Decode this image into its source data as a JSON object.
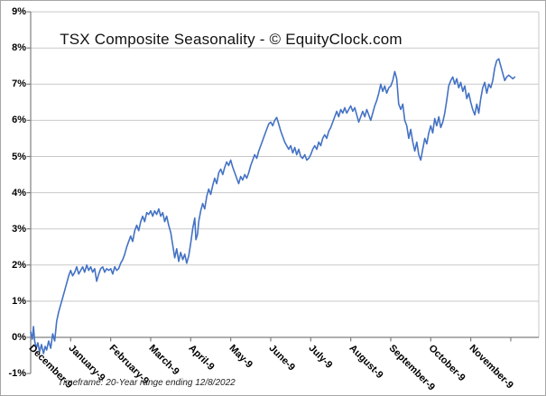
{
  "chart_data": {
    "type": "line",
    "title": "TSX Composite Seasonality - © EquityClock.com",
    "footnote": "Timeframe: 20-Year range ending 12/8/2022",
    "legend": "none",
    "grid": true,
    "x_axis": {
      "categories": [
        "December-9",
        "January-9",
        "February-9",
        "March-9",
        "April-9",
        "May-9",
        "June-9",
        "July-9",
        "August-9",
        "September-9",
        "October-9",
        "November-9"
      ],
      "tick_count": 13
    },
    "y_axis": {
      "min": -1,
      "max": 9,
      "step": 1,
      "tick_labels": [
        "9%",
        "8%",
        "7%",
        "6%",
        "5%",
        "4%",
        "3%",
        "2%",
        "1%",
        "0%",
        "-1%"
      ],
      "unit": "percent cumulative gain"
    },
    "colors": {
      "line": "#4472C4",
      "gridline": "#c9c9c9",
      "axis": "#7f7f7f",
      "text": "#000000"
    },
    "series": [
      {
        "color": "#4472C4",
        "points_format": "[month_position_from_Dec9, percent_gain]",
        "points": [
          [
            0.0,
            0.15
          ],
          [
            0.04,
            -0.05
          ],
          [
            0.07,
            0.3
          ],
          [
            0.1,
            -0.1
          ],
          [
            0.14,
            -0.3
          ],
          [
            0.18,
            -0.15
          ],
          [
            0.22,
            -0.4
          ],
          [
            0.27,
            -0.2
          ],
          [
            0.32,
            -0.45
          ],
          [
            0.36,
            -0.25
          ],
          [
            0.4,
            -0.35
          ],
          [
            0.45,
            -0.1
          ],
          [
            0.5,
            -0.3
          ],
          [
            0.55,
            0.1
          ],
          [
            0.6,
            -0.1
          ],
          [
            0.65,
            0.45
          ],
          [
            0.7,
            0.7
          ],
          [
            0.75,
            0.9
          ],
          [
            0.8,
            1.1
          ],
          [
            0.85,
            1.3
          ],
          [
            0.9,
            1.5
          ],
          [
            0.95,
            1.7
          ],
          [
            1.0,
            1.85
          ],
          [
            1.05,
            1.7
          ],
          [
            1.1,
            1.8
          ],
          [
            1.15,
            1.95
          ],
          [
            1.2,
            1.75
          ],
          [
            1.25,
            1.85
          ],
          [
            1.3,
            1.95
          ],
          [
            1.35,
            1.8
          ],
          [
            1.4,
            2.0
          ],
          [
            1.45,
            1.85
          ],
          [
            1.5,
            1.95
          ],
          [
            1.55,
            1.8
          ],
          [
            1.6,
            1.9
          ],
          [
            1.65,
            1.55
          ],
          [
            1.7,
            1.75
          ],
          [
            1.75,
            1.9
          ],
          [
            1.8,
            1.95
          ],
          [
            1.85,
            1.8
          ],
          [
            1.9,
            1.9
          ],
          [
            1.95,
            1.85
          ],
          [
            2.0,
            1.9
          ],
          [
            2.05,
            1.75
          ],
          [
            2.1,
            1.95
          ],
          [
            2.15,
            1.85
          ],
          [
            2.2,
            1.9
          ],
          [
            2.25,
            2.05
          ],
          [
            2.3,
            2.15
          ],
          [
            2.35,
            2.3
          ],
          [
            2.4,
            2.5
          ],
          [
            2.45,
            2.65
          ],
          [
            2.5,
            2.8
          ],
          [
            2.55,
            2.65
          ],
          [
            2.6,
            2.95
          ],
          [
            2.65,
            3.1
          ],
          [
            2.7,
            2.95
          ],
          [
            2.75,
            3.2
          ],
          [
            2.8,
            3.35
          ],
          [
            2.85,
            3.2
          ],
          [
            2.9,
            3.45
          ],
          [
            2.95,
            3.4
          ],
          [
            3.0,
            3.5
          ],
          [
            3.05,
            3.35
          ],
          [
            3.1,
            3.5
          ],
          [
            3.15,
            3.4
          ],
          [
            3.2,
            3.55
          ],
          [
            3.25,
            3.35
          ],
          [
            3.3,
            3.45
          ],
          [
            3.35,
            3.2
          ],
          [
            3.4,
            3.35
          ],
          [
            3.45,
            3.1
          ],
          [
            3.5,
            2.9
          ],
          [
            3.55,
            2.55
          ],
          [
            3.6,
            2.2
          ],
          [
            3.65,
            2.45
          ],
          [
            3.7,
            2.1
          ],
          [
            3.75,
            2.35
          ],
          [
            3.8,
            2.15
          ],
          [
            3.85,
            2.3
          ],
          [
            3.9,
            2.05
          ],
          [
            3.95,
            2.25
          ],
          [
            4.0,
            2.6
          ],
          [
            4.05,
            3.0
          ],
          [
            4.1,
            3.3
          ],
          [
            4.13,
            2.7
          ],
          [
            4.17,
            2.85
          ],
          [
            4.2,
            3.2
          ],
          [
            4.25,
            3.5
          ],
          [
            4.3,
            3.7
          ],
          [
            4.35,
            3.55
          ],
          [
            4.4,
            3.9
          ],
          [
            4.45,
            4.1
          ],
          [
            4.5,
            3.95
          ],
          [
            4.55,
            4.2
          ],
          [
            4.6,
            4.4
          ],
          [
            4.65,
            4.25
          ],
          [
            4.7,
            4.55
          ],
          [
            4.75,
            4.65
          ],
          [
            4.8,
            4.5
          ],
          [
            4.85,
            4.7
          ],
          [
            4.9,
            4.85
          ],
          [
            4.95,
            4.75
          ],
          [
            5.0,
            4.9
          ],
          [
            5.05,
            4.7
          ],
          [
            5.1,
            4.55
          ],
          [
            5.15,
            4.4
          ],
          [
            5.2,
            4.25
          ],
          [
            5.25,
            4.45
          ],
          [
            5.3,
            4.35
          ],
          [
            5.35,
            4.5
          ],
          [
            5.4,
            4.4
          ],
          [
            5.45,
            4.55
          ],
          [
            5.5,
            4.75
          ],
          [
            5.55,
            4.9
          ],
          [
            5.6,
            5.05
          ],
          [
            5.65,
            4.95
          ],
          [
            5.7,
            5.15
          ],
          [
            5.75,
            5.3
          ],
          [
            5.8,
            5.45
          ],
          [
            5.85,
            5.6
          ],
          [
            5.9,
            5.75
          ],
          [
            5.95,
            5.9
          ],
          [
            6.0,
            5.95
          ],
          [
            6.05,
            5.85
          ],
          [
            6.1,
            6.0
          ],
          [
            6.15,
            6.08
          ],
          [
            6.2,
            5.9
          ],
          [
            6.25,
            5.7
          ],
          [
            6.3,
            5.55
          ],
          [
            6.35,
            5.4
          ],
          [
            6.4,
            5.3
          ],
          [
            6.45,
            5.2
          ],
          [
            6.5,
            5.3
          ],
          [
            6.55,
            5.1
          ],
          [
            6.6,
            5.25
          ],
          [
            6.65,
            5.05
          ],
          [
            6.7,
            5.2
          ],
          [
            6.75,
            5.0
          ],
          [
            6.8,
            4.95
          ],
          [
            6.85,
            5.05
          ],
          [
            6.9,
            4.9
          ],
          [
            6.95,
            4.95
          ],
          [
            7.0,
            5.05
          ],
          [
            7.05,
            5.2
          ],
          [
            7.1,
            5.3
          ],
          [
            7.15,
            5.2
          ],
          [
            7.2,
            5.4
          ],
          [
            7.25,
            5.3
          ],
          [
            7.3,
            5.5
          ],
          [
            7.35,
            5.6
          ],
          [
            7.4,
            5.5
          ],
          [
            7.45,
            5.7
          ],
          [
            7.5,
            5.8
          ],
          [
            7.55,
            5.95
          ],
          [
            7.6,
            6.1
          ],
          [
            7.65,
            6.25
          ],
          [
            7.7,
            6.1
          ],
          [
            7.75,
            6.3
          ],
          [
            7.8,
            6.2
          ],
          [
            7.85,
            6.35
          ],
          [
            7.9,
            6.2
          ],
          [
            7.95,
            6.3
          ],
          [
            8.0,
            6.4
          ],
          [
            8.05,
            6.25
          ],
          [
            8.1,
            6.35
          ],
          [
            8.15,
            6.15
          ],
          [
            8.2,
            5.95
          ],
          [
            8.25,
            6.1
          ],
          [
            8.3,
            6.25
          ],
          [
            8.35,
            6.1
          ],
          [
            8.4,
            6.3
          ],
          [
            8.45,
            6.15
          ],
          [
            8.5,
            6.0
          ],
          [
            8.55,
            6.2
          ],
          [
            8.6,
            6.4
          ],
          [
            8.65,
            6.55
          ],
          [
            8.7,
            6.75
          ],
          [
            8.75,
            7.0
          ],
          [
            8.8,
            6.8
          ],
          [
            8.85,
            6.95
          ],
          [
            8.9,
            6.75
          ],
          [
            8.95,
            6.9
          ],
          [
            9.0,
            6.95
          ],
          [
            9.05,
            7.1
          ],
          [
            9.1,
            7.35
          ],
          [
            9.15,
            7.15
          ],
          [
            9.2,
            6.45
          ],
          [
            9.25,
            6.3
          ],
          [
            9.3,
            6.45
          ],
          [
            9.35,
            6.0
          ],
          [
            9.4,
            5.85
          ],
          [
            9.45,
            5.5
          ],
          [
            9.5,
            5.75
          ],
          [
            9.55,
            5.4
          ],
          [
            9.6,
            5.15
          ],
          [
            9.65,
            5.4
          ],
          [
            9.7,
            5.05
          ],
          [
            9.75,
            4.9
          ],
          [
            9.8,
            5.2
          ],
          [
            9.85,
            5.5
          ],
          [
            9.9,
            5.35
          ],
          [
            9.95,
            5.65
          ],
          [
            10.0,
            5.85
          ],
          [
            10.05,
            5.65
          ],
          [
            10.1,
            6.05
          ],
          [
            10.15,
            5.85
          ],
          [
            10.2,
            6.1
          ],
          [
            10.25,
            5.8
          ],
          [
            10.3,
            5.95
          ],
          [
            10.35,
            6.2
          ],
          [
            10.4,
            6.55
          ],
          [
            10.45,
            6.95
          ],
          [
            10.5,
            7.1
          ],
          [
            10.55,
            7.2
          ],
          [
            10.6,
            7.0
          ],
          [
            10.65,
            7.15
          ],
          [
            10.7,
            6.9
          ],
          [
            10.75,
            7.05
          ],
          [
            10.8,
            6.8
          ],
          [
            10.85,
            6.95
          ],
          [
            10.9,
            6.6
          ],
          [
            10.95,
            6.75
          ],
          [
            11.0,
            6.5
          ],
          [
            11.05,
            6.3
          ],
          [
            11.1,
            6.15
          ],
          [
            11.15,
            6.45
          ],
          [
            11.2,
            6.2
          ],
          [
            11.25,
            6.6
          ],
          [
            11.3,
            6.9
          ],
          [
            11.35,
            7.05
          ],
          [
            11.4,
            6.75
          ],
          [
            11.45,
            7.0
          ],
          [
            11.5,
            6.9
          ],
          [
            11.55,
            7.1
          ],
          [
            11.6,
            7.45
          ],
          [
            11.65,
            7.65
          ],
          [
            11.7,
            7.7
          ],
          [
            11.75,
            7.5
          ],
          [
            11.8,
            7.3
          ],
          [
            11.85,
            7.1
          ],
          [
            11.9,
            7.2
          ],
          [
            11.95,
            7.25
          ],
          [
            12.0,
            7.2
          ],
          [
            12.05,
            7.15
          ],
          [
            12.1,
            7.2
          ]
        ]
      }
    ]
  }
}
